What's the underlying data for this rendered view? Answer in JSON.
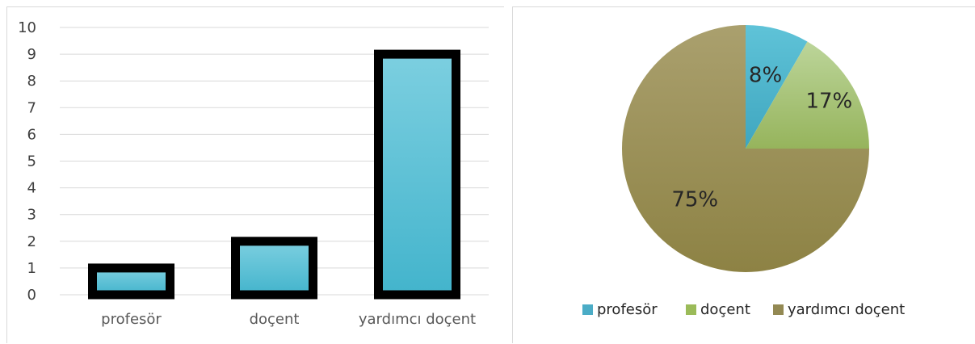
{
  "chart_data": [
    {
      "type": "bar",
      "categories": [
        "profesör",
        "doçent",
        "yardımcı doçent"
      ],
      "values": [
        1,
        2,
        9
      ],
      "ylim": [
        0,
        10
      ],
      "yticks": [
        0,
        1,
        2,
        3,
        4,
        5,
        6,
        7,
        8,
        9,
        10
      ],
      "grid": true,
      "bar_fill": "#4fbfd6",
      "bar_fill_light": "#7ccfe0",
      "bar_outline": "#000000"
    },
    {
      "type": "pie",
      "categories": [
        "profesör",
        "doçent",
        "yardımcı doçent"
      ],
      "values": [
        1,
        2,
        9
      ],
      "labels": [
        "8%",
        "17%",
        "75%"
      ],
      "colors": [
        "#4bacc6",
        "#9bbb59",
        "#938953"
      ],
      "legend_position": "bottom"
    }
  ]
}
